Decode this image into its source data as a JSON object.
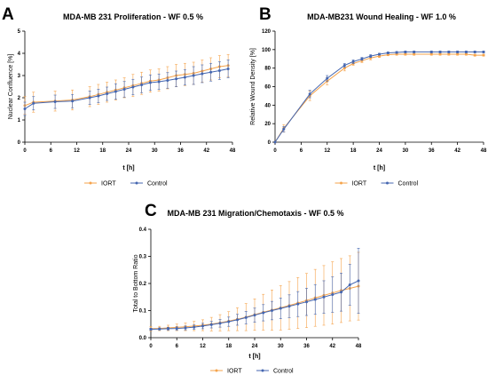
{
  "chart_data": [
    {
      "panel": "A",
      "type": "line",
      "title": "MDA-MB 231 Proliferation - WF 0.5 %",
      "xlabel": "t [h]",
      "ylabel": "Nuclear Confluence [%]",
      "xlim": [
        0,
        48
      ],
      "ylim": [
        0,
        5
      ],
      "xticks": [
        0,
        6,
        12,
        18,
        24,
        30,
        36,
        42,
        48
      ],
      "yticks": [
        0,
        1,
        2,
        3,
        4,
        5
      ],
      "legend_position": "bottom-center",
      "x": [
        0,
        2,
        7,
        11,
        15,
        17,
        19,
        21,
        23,
        25,
        27,
        29,
        31,
        33,
        35,
        37,
        39,
        41,
        43,
        45,
        47
      ],
      "series": [
        {
          "name": "IORT",
          "color": "#f5a34b",
          "values": [
            1.65,
            1.8,
            1.85,
            1.9,
            2.05,
            2.15,
            2.25,
            2.35,
            2.45,
            2.55,
            2.65,
            2.75,
            2.8,
            2.9,
            3.0,
            3.05,
            3.1,
            3.2,
            3.3,
            3.4,
            3.45
          ],
          "err": [
            0.4,
            0.45,
            0.45,
            0.45,
            0.45,
            0.45,
            0.45,
            0.45,
            0.45,
            0.5,
            0.5,
            0.5,
            0.5,
            0.5,
            0.5,
            0.5,
            0.5,
            0.5,
            0.5,
            0.5,
            0.5
          ]
        },
        {
          "name": "Control",
          "color": "#4466b0",
          "values": [
            1.5,
            1.75,
            1.82,
            1.85,
            2.0,
            2.08,
            2.18,
            2.28,
            2.38,
            2.48,
            2.58,
            2.68,
            2.72,
            2.78,
            2.85,
            2.92,
            3.0,
            3.08,
            3.15,
            3.22,
            3.3
          ],
          "err": [
            0.3,
            0.3,
            0.3,
            0.3,
            0.3,
            0.3,
            0.3,
            0.35,
            0.35,
            0.35,
            0.35,
            0.35,
            0.35,
            0.35,
            0.35,
            0.35,
            0.4,
            0.4,
            0.4,
            0.4,
            0.4
          ]
        }
      ]
    },
    {
      "panel": "B",
      "type": "line",
      "title": "MDA-MB231 Wound  Healing - WF 1.0 %",
      "xlabel": "t [h]",
      "ylabel": "Relative  Wound  Density  [%]",
      "xlim": [
        0,
        48
      ],
      "ylim": [
        0,
        120
      ],
      "xticks": [
        0,
        6,
        12,
        18,
        24,
        30,
        36,
        42,
        48
      ],
      "yticks": [
        0,
        20,
        40,
        60,
        80,
        100,
        120
      ],
      "legend_position": "bottom-center",
      "x": [
        0,
        2,
        8,
        12,
        16,
        18,
        20,
        22,
        24,
        26,
        28,
        30,
        32,
        36,
        38,
        40,
        42,
        44,
        46,
        48
      ],
      "series": [
        {
          "name": "IORT",
          "color": "#f5a34b",
          "values": [
            0,
            15,
            50,
            66,
            80,
            85,
            88,
            91,
            93,
            94.5,
            95,
            95,
            95,
            95,
            95,
            95,
            95,
            95,
            94,
            94
          ],
          "err": [
            0,
            4,
            5,
            4,
            3,
            2,
            2,
            2,
            1.5,
            1,
            1,
            1,
            1,
            1,
            1,
            1,
            1,
            1,
            1,
            1
          ]
        },
        {
          "name": "Control",
          "color": "#4466b0",
          "values": [
            0,
            14,
            52,
            69,
            83,
            87,
            90,
            93,
            95,
            96.5,
            97,
            97.5,
            97.5,
            97.5,
            97.5,
            97.5,
            97.5,
            97.5,
            97.5,
            97.5
          ],
          "err": [
            0,
            3,
            4,
            3,
            2,
            2,
            1.5,
            1.5,
            1,
            1,
            1,
            1,
            1,
            1,
            1,
            1,
            1,
            1,
            1,
            1
          ]
        }
      ]
    },
    {
      "panel": "C",
      "type": "line",
      "title": "MDA-MB 231 Migration/Chemotaxis - WF 0.5 %",
      "xlabel": "t [h]",
      "ylabel": "Total to Bottom  Ratio",
      "xlim": [
        0,
        48
      ],
      "ylim": [
        0,
        0.4
      ],
      "xticks": [
        0,
        6,
        12,
        18,
        24,
        30,
        36,
        42,
        48
      ],
      "yticks": [
        0.0,
        0.1,
        0.2,
        0.3,
        0.4
      ],
      "ytick_labels": [
        "0.0",
        "0.1",
        "0.2",
        "0.3",
        "0.4"
      ],
      "legend_position": "bottom-center",
      "x": [
        0,
        2,
        4,
        6,
        8,
        10,
        12,
        14,
        16,
        18,
        20,
        22,
        24,
        26,
        28,
        30,
        32,
        34,
        36,
        38,
        40,
        42,
        44,
        46,
        48
      ],
      "series": [
        {
          "name": "IORT",
          "color": "#f5a34b",
          "values": [
            0.033,
            0.034,
            0.036,
            0.038,
            0.04,
            0.043,
            0.046,
            0.05,
            0.055,
            0.061,
            0.068,
            0.076,
            0.085,
            0.094,
            0.102,
            0.11,
            0.119,
            0.128,
            0.137,
            0.147,
            0.156,
            0.165,
            0.174,
            0.182,
            0.19
          ],
          "err": [
            0.008,
            0.008,
            0.01,
            0.012,
            0.014,
            0.017,
            0.02,
            0.025,
            0.03,
            0.035,
            0.042,
            0.05,
            0.058,
            0.066,
            0.074,
            0.082,
            0.088,
            0.094,
            0.1,
            0.105,
            0.11,
            0.115,
            0.118,
            0.12,
            0.125
          ]
        },
        {
          "name": "Control",
          "color": "#4466b0",
          "values": [
            0.031,
            0.032,
            0.033,
            0.034,
            0.036,
            0.039,
            0.043,
            0.048,
            0.053,
            0.059,
            0.066,
            0.074,
            0.083,
            0.092,
            0.1,
            0.108,
            0.116,
            0.124,
            0.132,
            0.141,
            0.15,
            0.159,
            0.168,
            0.195,
            0.21
          ],
          "err": [
            0.004,
            0.004,
            0.005,
            0.006,
            0.007,
            0.008,
            0.01,
            0.012,
            0.014,
            0.017,
            0.02,
            0.023,
            0.026,
            0.03,
            0.034,
            0.038,
            0.042,
            0.046,
            0.05,
            0.055,
            0.06,
            0.065,
            0.07,
            0.075,
            0.12
          ]
        }
      ]
    }
  ]
}
